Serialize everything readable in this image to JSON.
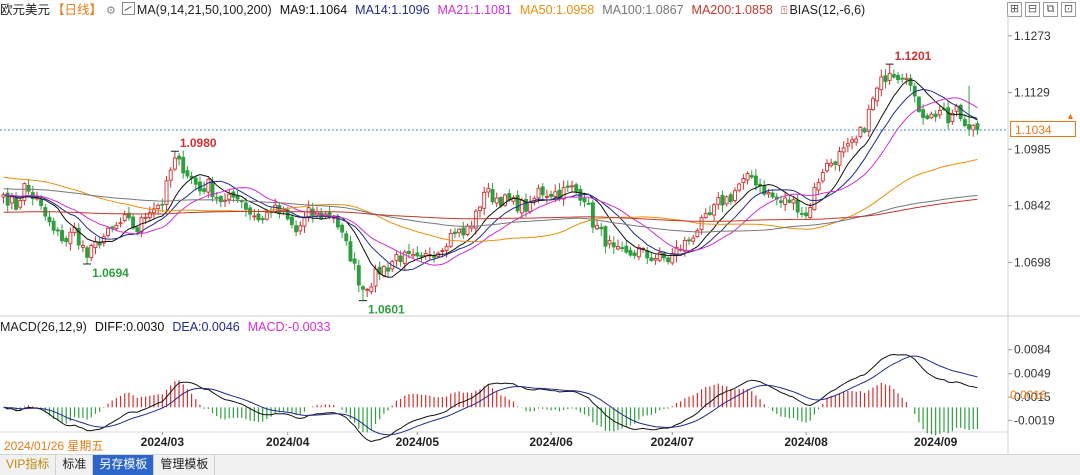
{
  "header": {
    "symbol": "欧元美元",
    "period": "【日线】",
    "ma_label": "MA(9,14,21,50,100,200)",
    "ma_values": [
      {
        "label": "MA9:1.1064",
        "color": "#111111"
      },
      {
        "label": "MA14:1.1096",
        "color": "#1f2a8c"
      },
      {
        "label": "MA21:1.1081",
        "color": "#d12fd1"
      },
      {
        "label": "MA50:1.0958",
        "color": "#e8900c"
      },
      {
        "label": "MA100:1.0867",
        "color": "#777777"
      },
      {
        "label": "MA200:1.0858",
        "color": "#c0392b"
      }
    ],
    "bias_label": "BIAS(12,-6,6)",
    "window_buttons": [
      "⊞",
      "⊟",
      "⧉",
      "⊡"
    ]
  },
  "macd_header": {
    "title": "MACD(26,12,9)",
    "diff": "DIFF:0.0030",
    "dea": "DEA:0.0046",
    "macd": "MACD:-0.0033"
  },
  "current_date": "2024/01/26 星期五",
  "tabs": [
    {
      "label": "VIP指标"
    },
    {
      "label": "标准"
    },
    {
      "label": "另存模板"
    },
    {
      "label": "管理模板"
    }
  ],
  "chart_data": {
    "type": "candlestick",
    "price_axis": {
      "ticks": [
        1.1273,
        1.1129,
        1.0985,
        1.0842,
        1.0698
      ],
      "range": [
        1.0562,
        1.1313
      ]
    },
    "current_price": 1.1034,
    "x_tick_labels": [
      "2024/03",
      "2024/04",
      "2024/05",
      "2024/06",
      "2024/07",
      "2024/08",
      "2024/09"
    ],
    "annotations": [
      {
        "label": "1.0980",
        "value": 1.098,
        "type": "high",
        "color": "#d23030"
      },
      {
        "label": "1.0694",
        "value": 1.0694,
        "type": "low",
        "color": "#2f9e3f"
      },
      {
        "label": "1.0601",
        "value": 1.0601,
        "type": "low",
        "color": "#2f9e3f"
      },
      {
        "label": "1.1201",
        "value": 1.1201,
        "type": "high",
        "color": "#d23030"
      }
    ],
    "macd_axis": {
      "ticks": [
        0.0084,
        0.0049,
        0.0015,
        -0.0019
      ],
      "range": [
        -0.0036,
        0.0104
      ]
    },
    "macd_current_label": "0.0016",
    "up_color": "#d23030",
    "down_color": "#2f9e3f",
    "close_anchors": [
      [
        0,
        1.087
      ],
      [
        3,
        1.084
      ],
      [
        5,
        1.089
      ],
      [
        8,
        1.0853
      ],
      [
        12,
        1.0775
      ],
      [
        15,
        1.0755
      ],
      [
        17,
        1.078
      ],
      [
        20,
        1.0712
      ],
      [
        23,
        1.0755
      ],
      [
        26,
        1.0778
      ],
      [
        29,
        1.0805
      ],
      [
        32,
        1.0782
      ],
      [
        35,
        1.0836
      ],
      [
        38,
        1.085
      ],
      [
        40,
        1.093
      ],
      [
        41,
        1.0955
      ],
      [
        43,
        1.094
      ],
      [
        45,
        1.091
      ],
      [
        47,
        1.0882
      ],
      [
        49,
        1.0895
      ],
      [
        51,
        1.0865
      ],
      [
        53,
        1.085
      ],
      [
        56,
        1.087
      ],
      [
        59,
        1.0825
      ],
      [
        62,
        1.0805
      ],
      [
        64,
        1.0835
      ],
      [
        67,
        1.0818
      ],
      [
        70,
        1.0775
      ],
      [
        73,
        1.0822
      ],
      [
        76,
        1.0818
      ],
      [
        79,
        1.0818
      ],
      [
        81,
        1.0765
      ],
      [
        83,
        1.0715
      ],
      [
        85,
        1.0655
      ],
      [
        86,
        1.0633
      ],
      [
        88,
        1.065
      ],
      [
        90,
        1.0678
      ],
      [
        92,
        1.0688
      ],
      [
        94,
        1.0715
      ],
      [
        96,
        1.071
      ],
      [
        98,
        1.0705
      ],
      [
        100,
        1.0698
      ],
      [
        102,
        1.0725
      ],
      [
        104,
        1.073
      ],
      [
        106,
        1.0755
      ],
      [
        108,
        1.078
      ],
      [
        110,
        1.0768
      ],
      [
        113,
        1.0815
      ],
      [
        115,
        1.088
      ],
      [
        117,
        1.0865
      ],
      [
        120,
        1.0855
      ],
      [
        123,
        1.0845
      ],
      [
        126,
        1.0835
      ],
      [
        128,
        1.088
      ],
      [
        130,
        1.0875
      ],
      [
        133,
        1.0875
      ],
      [
        136,
        1.0885
      ],
      [
        139,
        1.0865
      ],
      [
        141,
        1.08
      ],
      [
        143,
        1.077
      ],
      [
        146,
        1.0725
      ],
      [
        149,
        1.0715
      ],
      [
        152,
        1.0728
      ],
      [
        154,
        1.0713
      ],
      [
        157,
        1.071
      ],
      [
        159,
        1.0705
      ],
      [
        161,
        1.0728
      ],
      [
        164,
        1.0755
      ],
      [
        166,
        1.0785
      ],
      [
        169,
        1.0815
      ],
      [
        171,
        1.0848
      ],
      [
        174,
        1.0865
      ],
      [
        176,
        1.0895
      ],
      [
        179,
        1.0915
      ],
      [
        181,
        1.0895
      ],
      [
        183,
        1.087
      ],
      [
        186,
        1.085
      ],
      [
        188,
        1.0855
      ],
      [
        190,
        1.0842
      ],
      [
        192,
        1.0815
      ],
      [
        194,
        1.088
      ],
      [
        196,
        1.0935
      ],
      [
        198,
        1.0952
      ],
      [
        200,
        1.097
      ],
      [
        202,
        1.0985
      ],
      [
        204,
        1.1005
      ],
      [
        206,
        1.1045
      ],
      [
        208,
        1.111
      ],
      [
        210,
        1.1155
      ],
      [
        212,
        1.119
      ],
      [
        214,
        1.1175
      ],
      [
        216,
        1.1182
      ],
      [
        218,
        1.1105
      ],
      [
        220,
        1.1078
      ],
      [
        222,
        1.1068
      ],
      [
        224,
        1.1085
      ],
      [
        226,
        1.1055
      ],
      [
        228,
        1.1085
      ],
      [
        230,
        1.1048
      ],
      [
        232,
        1.1055
      ],
      [
        233,
        1.1034
      ]
    ],
    "overlays": [
      {
        "name": "MA9",
        "period": 9,
        "color": "#111111"
      },
      {
        "name": "MA14",
        "period": 14,
        "color": "#1f2a8c"
      },
      {
        "name": "MA21",
        "period": 21,
        "color": "#d12fd1"
      },
      {
        "name": "MA50",
        "period": 50,
        "color": "#e8900c"
      },
      {
        "name": "MA100",
        "period": 100,
        "color": "#777777"
      },
      {
        "name": "MA200",
        "period": 200,
        "color": "#c0392b"
      }
    ],
    "ma_targets": {
      "MA50": 1.0958,
      "MA100": 1.0867,
      "MA200": 1.0858
    },
    "ma_start_values": {
      "MA50": 1.0915,
      "MA100": 1.0885,
      "MA200": 1.0825
    },
    "macd_targets": {
      "DIFF": 0.003,
      "DEA": 0.0046
    },
    "grid": false,
    "legend": "top-left"
  }
}
